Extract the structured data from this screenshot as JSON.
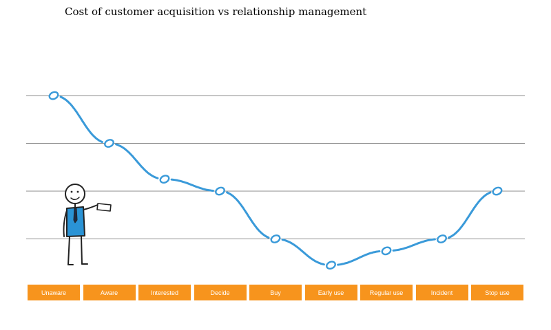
{
  "chart_data": {
    "type": "line",
    "title": "Cost of customer acquisition vs relationship management",
    "categories": [
      "Unaware",
      "Aware",
      "Interested",
      "Decide",
      "Buy",
      "Early use",
      "Regular use",
      "Incident",
      "Stop use"
    ],
    "values": [
      4.0,
      3.0,
      2.25,
      2.0,
      1.0,
      0.45,
      0.75,
      1.0,
      2.0
    ],
    "ylim": [
      0,
      4.5
    ],
    "gridlines": [
      1,
      2,
      3,
      4
    ],
    "grid": true,
    "legend": "none",
    "colors": {
      "line": "#3a9ad9",
      "markers": "#3a9ad9",
      "grid": "#8c8c8c",
      "stage_box": "#f7941d",
      "stage_text": "#ffffff"
    }
  }
}
